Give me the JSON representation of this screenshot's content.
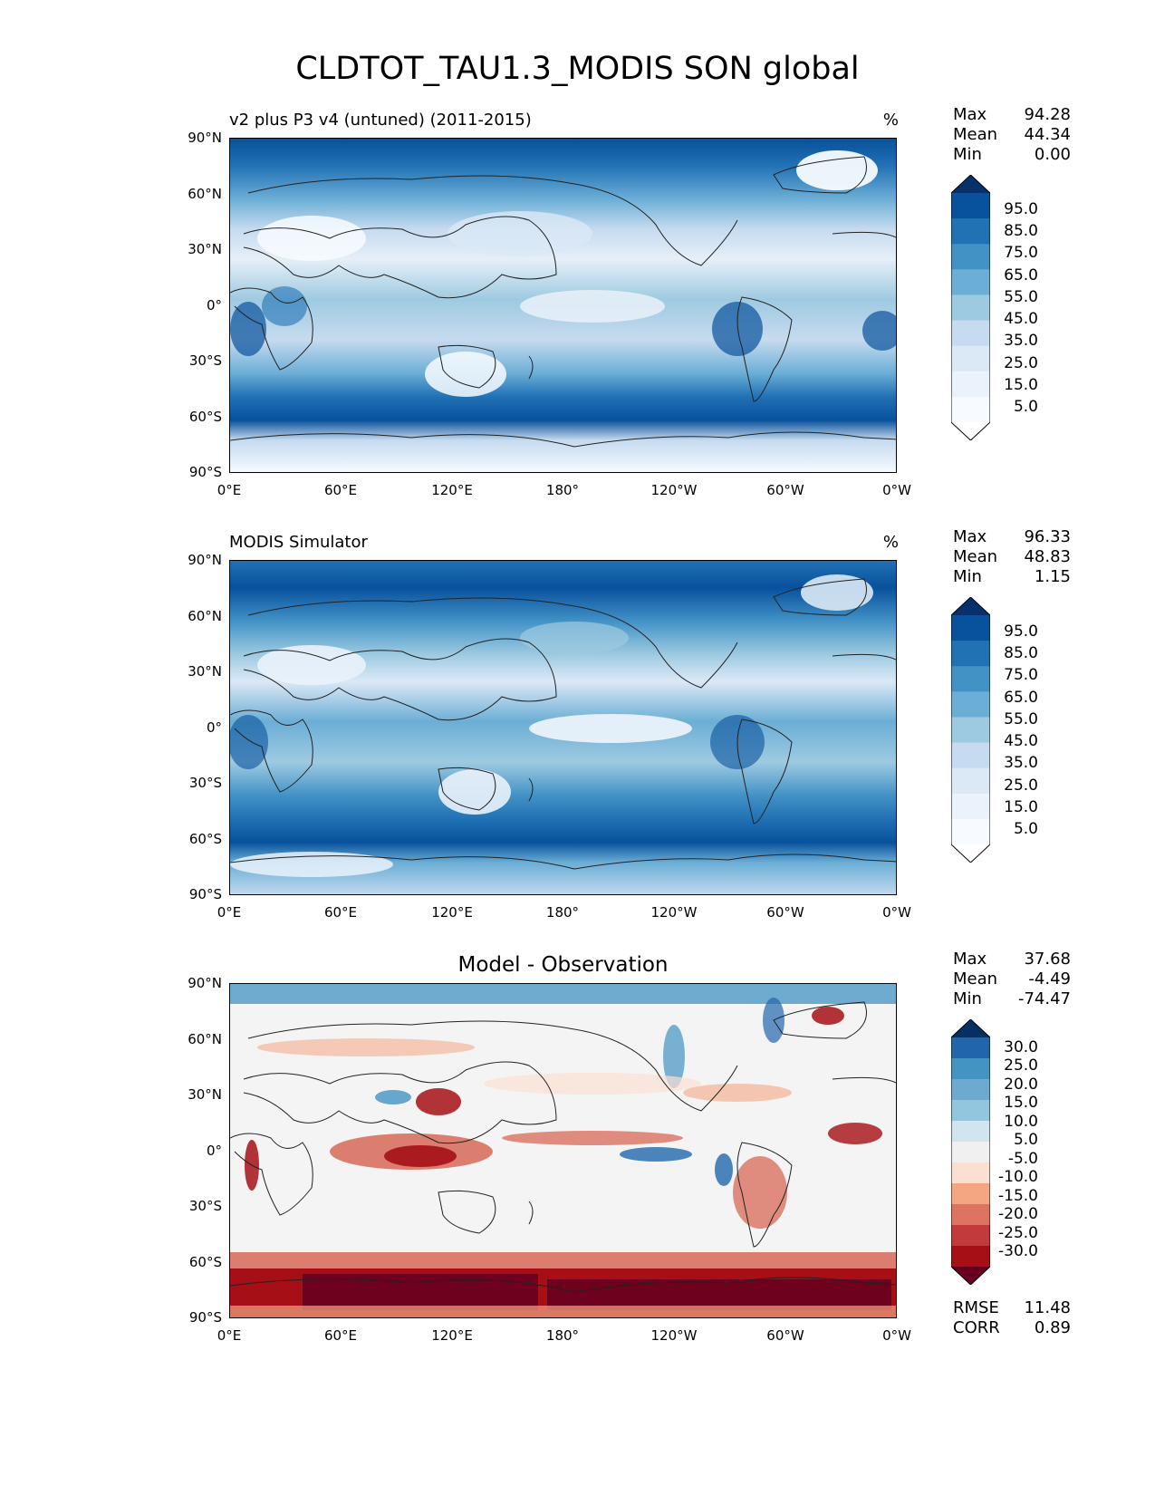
{
  "title": "CLDTOT_TAU1.3_MODIS SON global",
  "lat_ticks": [
    "90°N",
    "60°N",
    "30°N",
    "0°",
    "30°S",
    "60°S",
    "90°S"
  ],
  "lon_ticks": [
    "0°E",
    "60°E",
    "120°E",
    "180°",
    "120°W",
    "60°W",
    "0°W"
  ],
  "panels": [
    {
      "title": "v2 plus P3 v4 (untuned) (2011-2015)",
      "unit": "%",
      "stats": [
        {
          "label": "Max",
          "value": "94.28"
        },
        {
          "label": "Mean",
          "value": "44.34"
        },
        {
          "label": "Min",
          "value": "0.00"
        }
      ],
      "colorbar_labels": [
        "95.0",
        "85.0",
        "75.0",
        "65.0",
        "55.0",
        "45.0",
        "35.0",
        "25.0",
        "15.0",
        "5.0"
      ],
      "colorbar_colors": [
        "#08306b",
        "#08519c",
        "#2171b5",
        "#4292c6",
        "#6baed6",
        "#9ecae1",
        "#c6dbef",
        "#dbe9f6",
        "#eaf2fb",
        "#f7fbff",
        "#ffffff"
      ]
    },
    {
      "title": "MODIS Simulator",
      "unit": "%",
      "stats": [
        {
          "label": "Max",
          "value": "96.33"
        },
        {
          "label": "Mean",
          "value": "48.83"
        },
        {
          "label": "Min",
          "value": "1.15"
        }
      ],
      "colorbar_labels": [
        "95.0",
        "85.0",
        "75.0",
        "65.0",
        "55.0",
        "45.0",
        "35.0",
        "25.0",
        "15.0",
        "5.0"
      ],
      "colorbar_colors": [
        "#08306b",
        "#08519c",
        "#2171b5",
        "#4292c6",
        "#6baed6",
        "#9ecae1",
        "#c6dbef",
        "#dbe9f6",
        "#eaf2fb",
        "#f7fbff",
        "#ffffff"
      ]
    },
    {
      "title": "Model - Observation",
      "unit": "",
      "stats": [
        {
          "label": "Max",
          "value": "37.68"
        },
        {
          "label": "Mean",
          "value": "-4.49"
        },
        {
          "label": "Min",
          "value": "-74.47"
        }
      ],
      "extra_stats": [
        {
          "label": "RMSE",
          "value": "11.48"
        },
        {
          "label": "CORR",
          "value": "0.89"
        }
      ],
      "colorbar_labels": [
        "30.0",
        "25.0",
        "20.0",
        "15.0",
        "10.0",
        "5.0",
        "-5.0",
        "-10.0",
        "-15.0",
        "-20.0",
        "-25.0",
        "-30.0"
      ],
      "colorbar_colors": [
        "#053061",
        "#2166ac",
        "#4393c3",
        "#6ea9d0",
        "#92c5de",
        "#d1e5f0",
        "#f0f0f0",
        "#fbe0d2",
        "#f4a582",
        "#de7361",
        "#c23a3a",
        "#a50f15",
        "#67001f"
      ]
    }
  ],
  "colors": {
    "blue_dark": "#08306b",
    "blue_mid": "#4292c6",
    "blue_light": "#c6dbef",
    "red_dark": "#67001f",
    "red_mid": "#d6604d",
    "neutral": "#f4f4f4"
  }
}
